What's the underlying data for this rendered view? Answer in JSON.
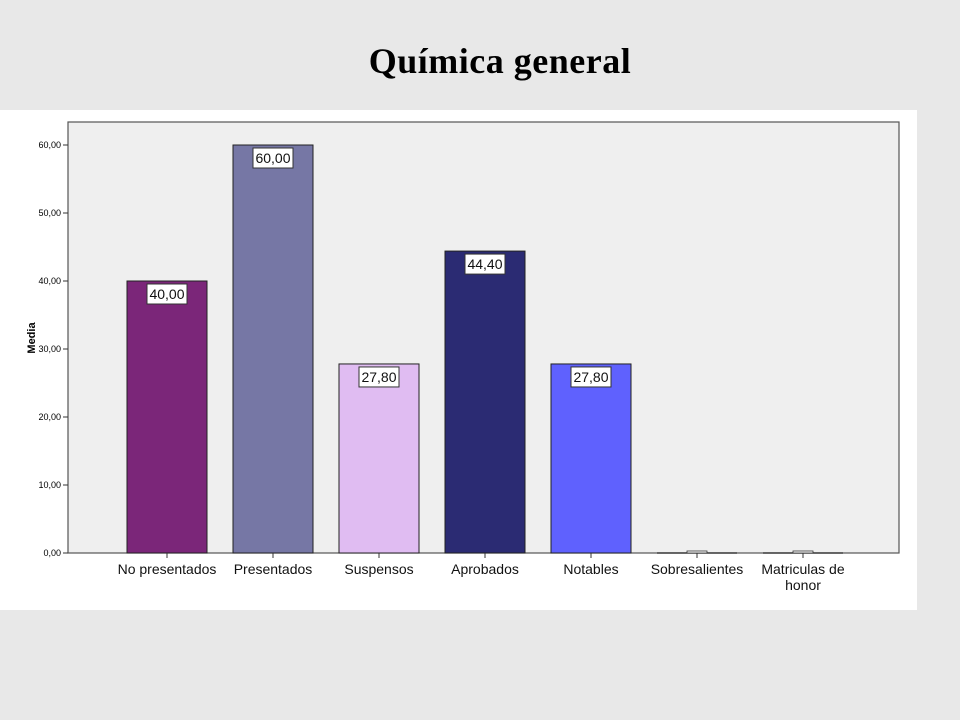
{
  "slide": {
    "title": "Química general"
  },
  "chart_data": {
    "type": "bar",
    "title": "",
    "xlabel": "",
    "ylabel": "Media",
    "ylim": [
      0,
      62
    ],
    "yticks": [
      "0,00",
      "10,00",
      "20,00",
      "30,00",
      "40,00",
      "50,00",
      "60,00"
    ],
    "ytick_values": [
      0,
      10,
      20,
      30,
      40,
      50,
      60
    ],
    "categories": [
      [
        "No presentados"
      ],
      [
        "Presentados"
      ],
      [
        "Suspensos"
      ],
      [
        "Aprobados"
      ],
      [
        "Notables"
      ],
      [
        "Sobresalientes"
      ],
      [
        "Matriculas de",
        "honor"
      ]
    ],
    "values": [
      40.0,
      60.0,
      27.8,
      44.4,
      27.8,
      0,
      0
    ],
    "value_labels": [
      "40,00",
      "60,00",
      "27,80",
      "44,40",
      "27,80",
      "",
      ""
    ],
    "colors": [
      "#7b2679",
      "#7677a5",
      "#e0bcf2",
      "#2b2b73",
      "#5f61fe",
      "#cccccc",
      "#cccccc"
    ],
    "plot_background": "#efefef",
    "grid": false,
    "legend": "none"
  }
}
